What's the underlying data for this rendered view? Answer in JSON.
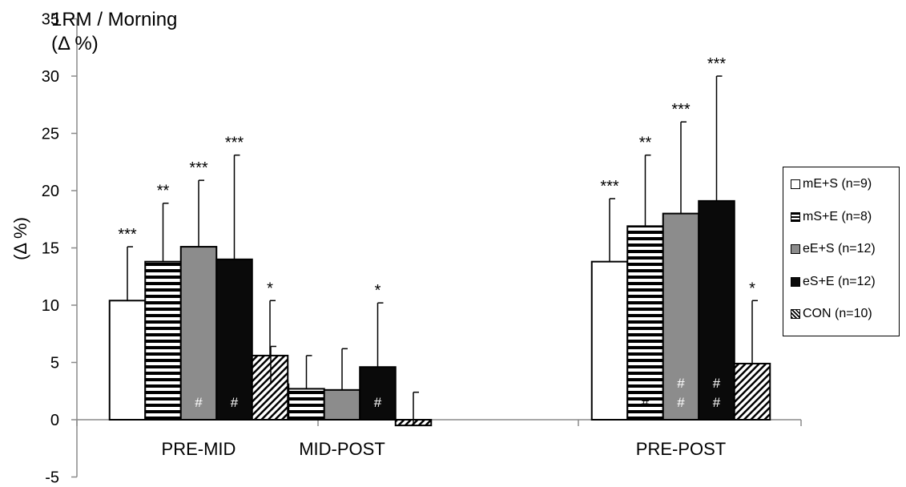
{
  "chart_data": {
    "type": "bar",
    "title_lines": [
      "1RM / Morning",
      "(Δ %)"
    ],
    "ylabel": "(Δ %)",
    "xlabel": "",
    "ylim": [
      -5,
      35
    ],
    "yticks": [
      -5,
      0,
      5,
      10,
      15,
      20,
      25,
      30,
      35
    ],
    "categories": [
      "PRE-MID",
      "MID-POST",
      "PRE-POST"
    ],
    "legend_position": "right",
    "series": [
      {
        "name": "mE+S (n=9)",
        "fill": "white",
        "color": "#ffffff",
        "values": [
          10.4,
          3.1,
          13.8
        ],
        "errors": [
          4.7,
          3.3,
          5.5
        ],
        "stars": [
          "***",
          "",
          "***"
        ],
        "hashes": [
          0,
          0,
          0
        ]
      },
      {
        "name": "mS+E (n=8)",
        "fill": "horizontal",
        "color": "#ffffff",
        "values": [
          13.8,
          2.7,
          16.9
        ],
        "errors": [
          5.1,
          2.9,
          6.2
        ],
        "stars": [
          "**",
          "",
          "**"
        ],
        "hashes": [
          0,
          0,
          1
        ]
      },
      {
        "name": "eE+S (n=12)",
        "fill": "gray",
        "color": "#8c8c8c",
        "values": [
          15.1,
          2.6,
          18.0
        ],
        "errors": [
          5.8,
          3.6,
          8.0
        ],
        "stars": [
          "***",
          "",
          "***"
        ],
        "hashes": [
          1,
          0,
          2
        ]
      },
      {
        "name": "eS+E (n=12)",
        "fill": "black",
        "color": "#0a0a0a",
        "values": [
          14.0,
          4.6,
          19.1
        ],
        "errors": [
          9.1,
          5.6,
          10.9
        ],
        "stars": [
          "***",
          "*",
          "***"
        ],
        "hashes": [
          1,
          1,
          2
        ]
      },
      {
        "name": "CON (n=10)",
        "fill": "diagonal",
        "color": "#ffffff",
        "values": [
          5.6,
          -0.5,
          4.9
        ],
        "errors": [
          4.8,
          2.9,
          5.5
        ],
        "stars": [
          "*",
          "",
          "*"
        ],
        "hashes": [
          0,
          0,
          0
        ]
      }
    ],
    "hash_symbol": "#"
  }
}
